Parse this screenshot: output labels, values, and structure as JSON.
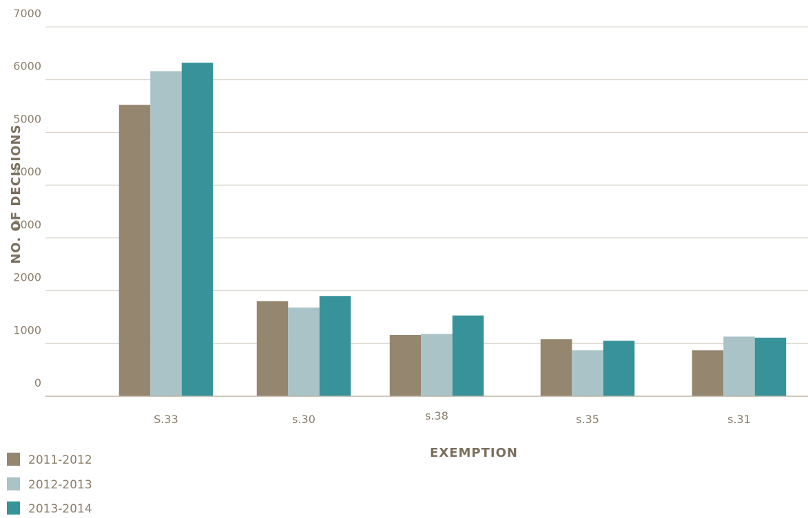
{
  "chart_data": {
    "type": "bar",
    "title": "",
    "xlabel": "EXEMPTION",
    "ylabel": "NO. OF DECISIONS",
    "ylim": [
      0,
      7000
    ],
    "yticks": [
      "0",
      "1000",
      "2000",
      "3000",
      "4000",
      "5000",
      "6000",
      "7000"
    ],
    "grid": true,
    "legend_position": "bottom-left",
    "categories": [
      "S.33",
      "s.30",
      "s.38",
      "s.35",
      "s.31"
    ],
    "series": [
      {
        "name": "2011-2012",
        "color": "#94866f",
        "values": [
          5520,
          1800,
          1160,
          1080,
          870
        ]
      },
      {
        "name": "2012-2013",
        "color": "#a9c3c7",
        "values": [
          6160,
          1680,
          1180,
          870,
          1130
        ]
      },
      {
        "name": "2013-2014",
        "color": "#37929a",
        "values": [
          6320,
          1900,
          1530,
          1050,
          1110
        ]
      }
    ]
  }
}
